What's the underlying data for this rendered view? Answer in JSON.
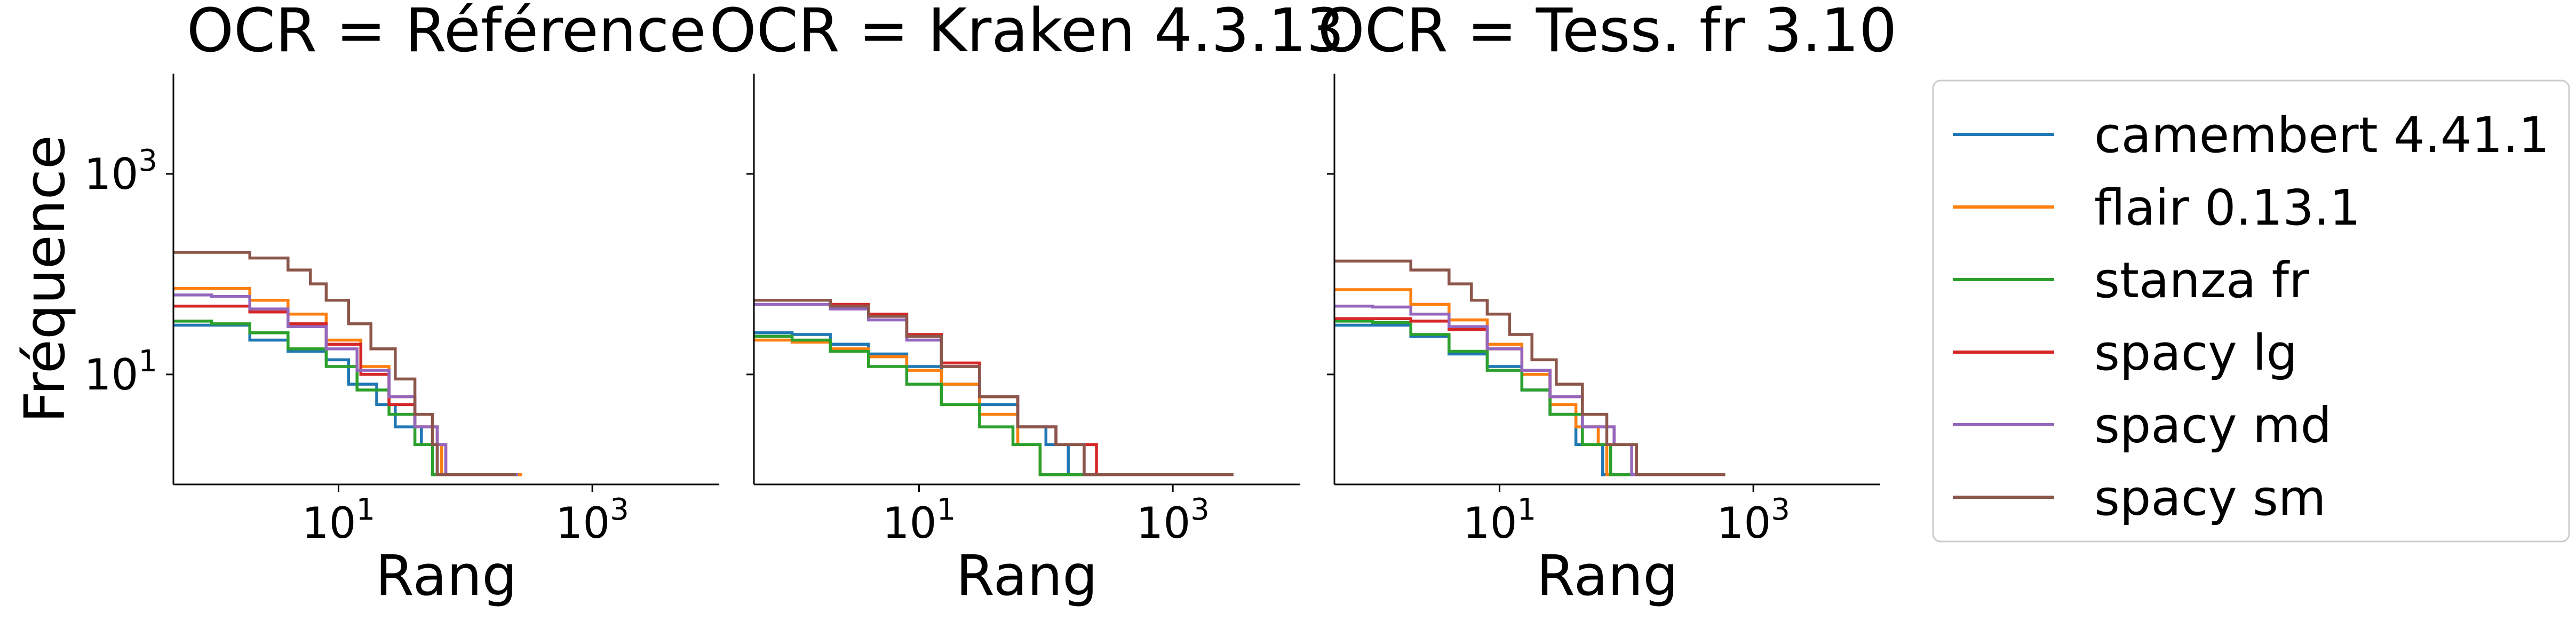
{
  "chart_data": [
    {
      "type": "line",
      "title": "OCR = Référence",
      "xlabel": "Rang",
      "ylabel": "Fréquence",
      "xscale": "log",
      "yscale": "log",
      "xlim": [
        0.5,
        10000
      ],
      "ylim": [
        0.8,
        10000
      ],
      "xticks": [
        {
          "value": 10,
          "base": "10",
          "exp": "1"
        },
        {
          "value": 1000,
          "base": "10",
          "exp": "3"
        }
      ],
      "yticks": [
        {
          "value": 10,
          "base": "10",
          "exp": "1"
        },
        {
          "value": 1000,
          "base": "10",
          "exp": "3"
        }
      ],
      "series": [
        {
          "name": "camembert 4.41.1",
          "color": "#1f77b4",
          "points": [
            [
              0.5,
              31
            ],
            [
              1,
              31
            ],
            [
              2,
              22
            ],
            [
              4,
              17
            ],
            [
              8,
              14
            ],
            [
              12,
              8
            ],
            [
              20,
              5
            ],
            [
              28,
              3
            ],
            [
              45,
              2
            ],
            [
              60,
              1
            ],
            [
              250,
              1
            ]
          ]
        },
        {
          "name": "flair 0.13.1",
          "color": "#ff7f0e",
          "points": [
            [
              0.5,
              72
            ],
            [
              1,
              72
            ],
            [
              2,
              55
            ],
            [
              4,
              40
            ],
            [
              8,
              22
            ],
            [
              15,
              12
            ],
            [
              25,
              6
            ],
            [
              40,
              3
            ],
            [
              60,
              2
            ],
            [
              65,
              1
            ],
            [
              280,
              1
            ]
          ]
        },
        {
          "name": "stanza fr",
          "color": "#2ca02c",
          "points": [
            [
              0.5,
              34
            ],
            [
              1,
              32
            ],
            [
              2,
              26
            ],
            [
              4,
              18
            ],
            [
              8,
              12
            ],
            [
              14,
              7
            ],
            [
              25,
              4
            ],
            [
              40,
              2
            ],
            [
              55,
              1
            ],
            [
              250,
              1
            ]
          ]
        },
        {
          "name": "spacy lg",
          "color": "#d62728",
          "points": [
            [
              0.5,
              48
            ],
            [
              1,
              48
            ],
            [
              2,
              42
            ],
            [
              4,
              32
            ],
            [
              8,
              20
            ],
            [
              15,
              10
            ],
            [
              25,
              5
            ],
            [
              40,
              3
            ],
            [
              60,
              2
            ],
            [
              70,
              1
            ],
            [
              260,
              1
            ]
          ]
        },
        {
          "name": "spacy md",
          "color": "#9467bd",
          "points": [
            [
              0.5,
              62
            ],
            [
              1,
              60
            ],
            [
              2,
              45
            ],
            [
              4,
              30
            ],
            [
              8,
              18
            ],
            [
              14,
              11
            ],
            [
              25,
              6
            ],
            [
              40,
              3
            ],
            [
              60,
              2
            ],
            [
              70,
              1
            ],
            [
              260,
              1
            ]
          ]
        },
        {
          "name": "spacy sm",
          "color": "#8c564b",
          "points": [
            [
              0.5,
              165
            ],
            [
              1,
              165
            ],
            [
              2,
              145
            ],
            [
              4,
              110
            ],
            [
              6,
              80
            ],
            [
              8,
              55
            ],
            [
              12,
              32
            ],
            [
              18,
              18
            ],
            [
              28,
              9
            ],
            [
              40,
              4
            ],
            [
              55,
              2
            ],
            [
              60,
              1
            ],
            [
              250,
              1
            ]
          ]
        }
      ]
    },
    {
      "type": "line",
      "title": "OCR = Kraken 4.3.13",
      "xlabel": "Rang",
      "ylabel": "",
      "xscale": "log",
      "yscale": "log",
      "xlim": [
        0.5,
        10000
      ],
      "ylim": [
        0.8,
        10000
      ],
      "xticks": [
        {
          "value": 10,
          "base": "10",
          "exp": "1"
        },
        {
          "value": 1000,
          "base": "10",
          "exp": "3"
        }
      ],
      "yticks": [
        {
          "value": 10,
          "base": "10",
          "exp": "1"
        },
        {
          "value": 1000,
          "base": "10",
          "exp": "3"
        }
      ],
      "series": [
        {
          "name": "camembert 4.41.1",
          "color": "#1f77b4",
          "points": [
            [
              0.5,
              26
            ],
            [
              1,
              25
            ],
            [
              2,
              20
            ],
            [
              4,
              16
            ],
            [
              8,
              12
            ],
            [
              15,
              8
            ],
            [
              30,
              5
            ],
            [
              60,
              3
            ],
            [
              100,
              2
            ],
            [
              150,
              1
            ],
            [
              3000,
              1
            ]
          ]
        },
        {
          "name": "flair 0.13.1",
          "color": "#ff7f0e",
          "points": [
            [
              0.5,
              22
            ],
            [
              1,
              21
            ],
            [
              2,
              18
            ],
            [
              4,
              15
            ],
            [
              8,
              11
            ],
            [
              15,
              8
            ],
            [
              30,
              4
            ],
            [
              60,
              2
            ],
            [
              90,
              1
            ],
            [
              3000,
              1
            ]
          ]
        },
        {
          "name": "stanza fr",
          "color": "#2ca02c",
          "points": [
            [
              0.5,
              24
            ],
            [
              1,
              22
            ],
            [
              2,
              17
            ],
            [
              4,
              12
            ],
            [
              8,
              8
            ],
            [
              15,
              5
            ],
            [
              30,
              3
            ],
            [
              55,
              2
            ],
            [
              90,
              1
            ],
            [
              3000,
              1
            ]
          ]
        },
        {
          "name": "spacy lg",
          "color": "#d62728",
          "points": [
            [
              0.5,
              55
            ],
            [
              1,
              55
            ],
            [
              2,
              50
            ],
            [
              4,
              40
            ],
            [
              8,
              25
            ],
            [
              15,
              13
            ],
            [
              30,
              6
            ],
            [
              60,
              3
            ],
            [
              120,
              2
            ],
            [
              250,
              1
            ],
            [
              3000,
              1
            ]
          ]
        },
        {
          "name": "spacy md",
          "color": "#9467bd",
          "points": [
            [
              0.5,
              50
            ],
            [
              1,
              50
            ],
            [
              2,
              45
            ],
            [
              4,
              35
            ],
            [
              8,
              22
            ],
            [
              15,
              12
            ],
            [
              30,
              6
            ],
            [
              60,
              3
            ],
            [
              120,
              2
            ],
            [
              200,
              1
            ],
            [
              3000,
              1
            ]
          ]
        },
        {
          "name": "spacy sm",
          "color": "#8c564b",
          "points": [
            [
              0.5,
              55
            ],
            [
              1,
              55
            ],
            [
              2,
              48
            ],
            [
              4,
              38
            ],
            [
              8,
              24
            ],
            [
              15,
              12
            ],
            [
              30,
              6
            ],
            [
              60,
              3
            ],
            [
              120,
              2
            ],
            [
              200,
              1
            ],
            [
              3000,
              1
            ]
          ]
        }
      ]
    },
    {
      "type": "line",
      "title": "OCR = Tess. fr 3.10",
      "xlabel": "Rang",
      "ylabel": "",
      "xscale": "log",
      "yscale": "log",
      "xlim": [
        0.5,
        10000
      ],
      "ylim": [
        0.8,
        10000
      ],
      "xticks": [
        {
          "value": 10,
          "base": "10",
          "exp": "1"
        },
        {
          "value": 1000,
          "base": "10",
          "exp": "3"
        }
      ],
      "yticks": [
        {
          "value": 10,
          "base": "10",
          "exp": "1"
        },
        {
          "value": 1000,
          "base": "10",
          "exp": "3"
        }
      ],
      "series": [
        {
          "name": "camembert 4.41.1",
          "color": "#1f77b4",
          "points": [
            [
              0.5,
              31
            ],
            [
              1,
              31
            ],
            [
              2,
              24
            ],
            [
              4,
              16
            ],
            [
              8,
              12
            ],
            [
              15,
              7
            ],
            [
              25,
              4
            ],
            [
              40,
              2
            ],
            [
              65,
              1
            ],
            [
              600,
              1
            ]
          ]
        },
        {
          "name": "flair 0.13.1",
          "color": "#ff7f0e",
          "points": [
            [
              0.5,
              70
            ],
            [
              1,
              70
            ],
            [
              2,
              50
            ],
            [
              4,
              35
            ],
            [
              8,
              20
            ],
            [
              15,
              10
            ],
            [
              25,
              5
            ],
            [
              40,
              3
            ],
            [
              60,
              2
            ],
            [
              70,
              1
            ],
            [
              600,
              1
            ]
          ]
        },
        {
          "name": "stanza fr",
          "color": "#2ca02c",
          "points": [
            [
              0.5,
              34
            ],
            [
              1,
              33
            ],
            [
              2,
              25
            ],
            [
              4,
              17
            ],
            [
              8,
              11
            ],
            [
              15,
              7
            ],
            [
              25,
              4
            ],
            [
              45,
              2
            ],
            [
              75,
              1
            ],
            [
              600,
              1
            ]
          ]
        },
        {
          "name": "spacy lg",
          "color": "#d62728",
          "points": [
            [
              0.5,
              36
            ],
            [
              1,
              36
            ],
            [
              2,
              34
            ],
            [
              4,
              28
            ],
            [
              8,
              18
            ],
            [
              15,
              11
            ],
            [
              25,
              6
            ],
            [
              45,
              3
            ],
            [
              80,
              2
            ],
            [
              120,
              1
            ],
            [
              600,
              1
            ]
          ]
        },
        {
          "name": "spacy md",
          "color": "#9467bd",
          "points": [
            [
              0.5,
              48
            ],
            [
              1,
              47
            ],
            [
              2,
              40
            ],
            [
              4,
              30
            ],
            [
              8,
              18
            ],
            [
              15,
              11
            ],
            [
              25,
              6
            ],
            [
              45,
              3
            ],
            [
              80,
              2
            ],
            [
              110,
              1
            ],
            [
              600,
              1
            ]
          ]
        },
        {
          "name": "spacy sm",
          "color": "#8c564b",
          "points": [
            [
              0.5,
              135
            ],
            [
              1,
              135
            ],
            [
              2,
              110
            ],
            [
              4,
              80
            ],
            [
              6,
              55
            ],
            [
              8,
              40
            ],
            [
              12,
              25
            ],
            [
              18,
              14
            ],
            [
              28,
              8
            ],
            [
              45,
              4
            ],
            [
              70,
              2
            ],
            [
              120,
              1
            ],
            [
              600,
              1
            ]
          ]
        }
      ]
    }
  ],
  "legend": {
    "placement": "right",
    "entries": [
      {
        "label": "camembert 4.41.1",
        "color": "#1f77b4"
      },
      {
        "label": "flair 0.13.1",
        "color": "#ff7f0e"
      },
      {
        "label": "stanza fr",
        "color": "#2ca02c"
      },
      {
        "label": "spacy lg",
        "color": "#d62728"
      },
      {
        "label": "spacy md",
        "color": "#9467bd"
      },
      {
        "label": "spacy sm",
        "color": "#8c564b"
      }
    ]
  }
}
